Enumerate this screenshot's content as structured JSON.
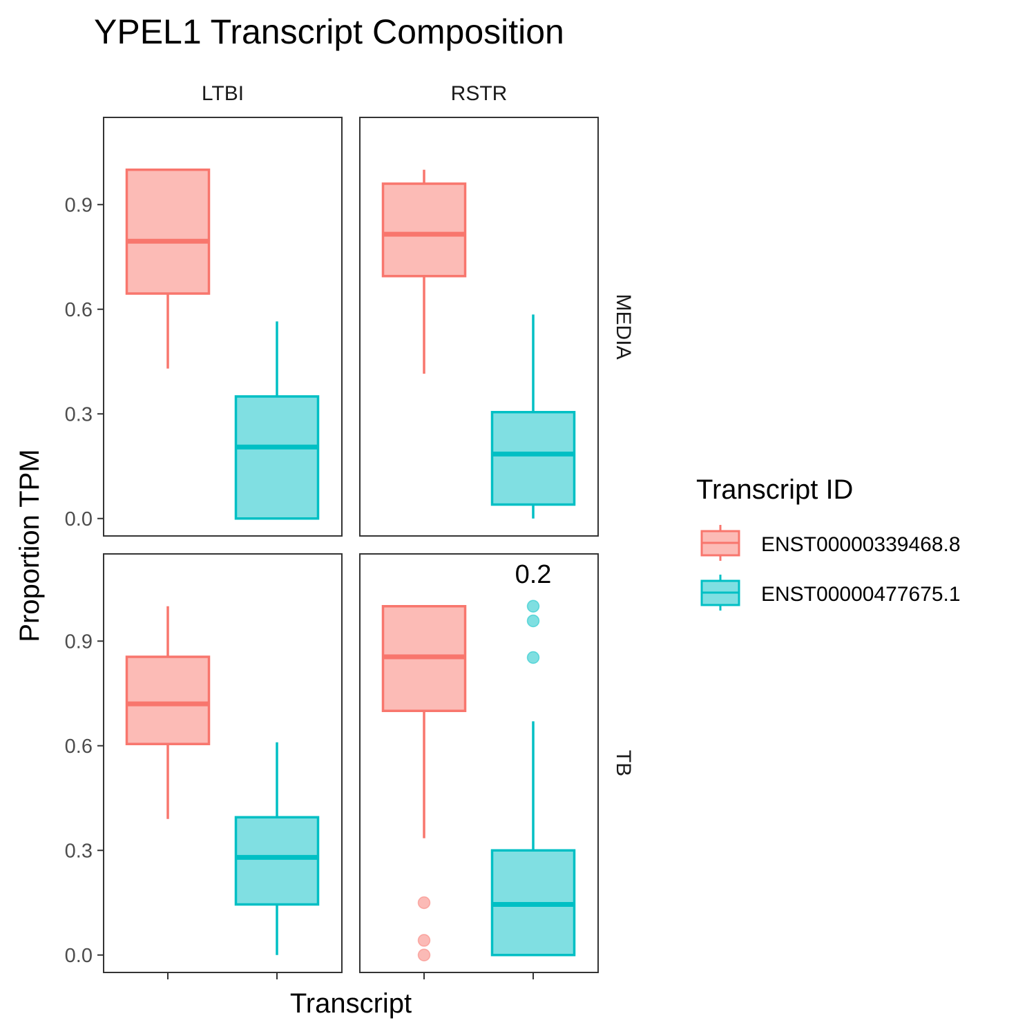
{
  "chart_data": {
    "type": "box",
    "title": "YPEL1 Transcript Composition",
    "xlabel": "Transcript",
    "ylabel": "Proportion TPM",
    "ylim": [
      -0.05,
      1.15
    ],
    "yticks": [
      "0.0",
      "0.3",
      "0.6",
      "0.9"
    ],
    "ytick_values": [
      0,
      0.3,
      0.6,
      0.9
    ],
    "facet_cols": [
      "LTBI",
      "RSTR"
    ],
    "facet_rows": [
      "MEDIA",
      "TB"
    ],
    "legend": {
      "title": "Transcript ID",
      "position": "right",
      "entries": [
        "ENST00000339468.8",
        "ENST00000477675.1"
      ]
    },
    "colors": {
      "ENST00000339468.8": "#F8766D",
      "ENST00000477675.1": "#00BFC4"
    },
    "panels": [
      {
        "col": "LTBI",
        "row": "MEDIA",
        "boxes": [
          {
            "transcript": "ENST00000339468.8",
            "min": 0.43,
            "q1": 0.645,
            "median": 0.795,
            "q3": 1.0,
            "max": 1.0,
            "outliers": []
          },
          {
            "transcript": "ENST00000477675.1",
            "min": 0.0,
            "q1": 0.0,
            "median": 0.205,
            "q3": 0.35,
            "max": 0.565,
            "outliers": []
          }
        ]
      },
      {
        "col": "RSTR",
        "row": "MEDIA",
        "boxes": [
          {
            "transcript": "ENST00000339468.8",
            "min": 0.415,
            "q1": 0.695,
            "median": 0.815,
            "q3": 0.96,
            "max": 1.0,
            "outliers": []
          },
          {
            "transcript": "ENST00000477675.1",
            "min": 0.0,
            "q1": 0.04,
            "median": 0.185,
            "q3": 0.305,
            "max": 0.585,
            "outliers": []
          }
        ]
      },
      {
        "col": "LTBI",
        "row": "TB",
        "boxes": [
          {
            "transcript": "ENST00000339468.8",
            "min": 0.39,
            "q1": 0.605,
            "median": 0.72,
            "q3": 0.855,
            "max": 1.0,
            "outliers": []
          },
          {
            "transcript": "ENST00000477675.1",
            "min": 0.0,
            "q1": 0.145,
            "median": 0.28,
            "q3": 0.395,
            "max": 0.61,
            "outliers": []
          }
        ]
      },
      {
        "col": "RSTR",
        "row": "TB",
        "annotation": "0.2",
        "boxes": [
          {
            "transcript": "ENST00000339468.8",
            "min": 0.335,
            "q1": 0.7,
            "median": 0.855,
            "q3": 1.0,
            "max": 1.0,
            "outliers": [
              0.15,
              0.042,
              0.0
            ]
          },
          {
            "transcript": "ENST00000477675.1",
            "min": 0.0,
            "q1": 0.0,
            "median": 0.145,
            "q3": 0.3,
            "max": 0.67,
            "outliers": [
              1.0,
              0.958,
              0.853
            ]
          }
        ]
      }
    ]
  }
}
